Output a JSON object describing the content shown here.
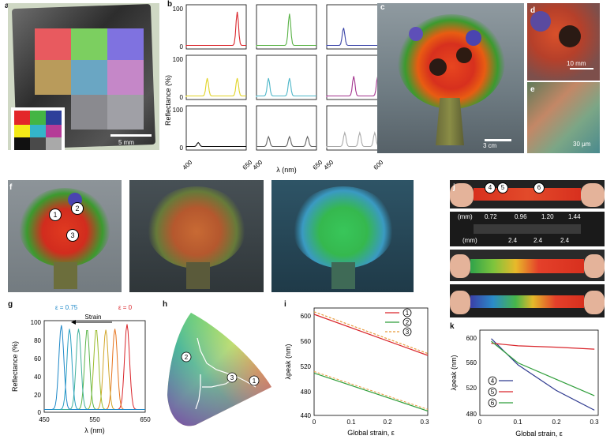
{
  "panel_labels": {
    "a": "a",
    "b": "b",
    "c": "c",
    "d": "d",
    "e": "e",
    "f": "f",
    "g": "g",
    "h": "h",
    "i": "i",
    "j": "j",
    "k": "k"
  },
  "a": {
    "scale": "5 mm"
  },
  "b": {
    "ylabel": "Reflectance (%)",
    "xlabel": "λ (nm)",
    "yticks_top": [
      "100",
      "0"
    ],
    "yticks_mid": [
      "100",
      "0"
    ],
    "yticks_bot": [
      "100",
      "0"
    ],
    "xticks": [
      "400",
      "650",
      "400",
      "650",
      "450",
      "600"
    ],
    "colors": [
      "#d9252b",
      "#59b246",
      "#3b45a8",
      "#e1d325",
      "#4fb7c9",
      "#a3338e",
      "#111111",
      "#666666",
      "#aaaaaa"
    ]
  },
  "c": {
    "scale": "3 cm"
  },
  "d": {
    "scale": "10 mm"
  },
  "e": {
    "scale": "30 μm"
  },
  "f": {
    "markers": [
      "1",
      "2",
      "3"
    ]
  },
  "g": {
    "strain_label": "Strain",
    "eps_left": "ε = 0.75",
    "eps_right": "ε = 0",
    "ylabel": "Reflectance (%)",
    "xlabel": "λ (nm)",
    "yticks": [
      "100",
      "80",
      "60",
      "40",
      "20",
      "0"
    ],
    "xticks": [
      "450",
      "550",
      "650"
    ]
  },
  "h": {
    "markers": [
      "1",
      "2",
      "3"
    ]
  },
  "i": {
    "ylabel": "λpeak (nm)",
    "xlabel": "Global strain, ε",
    "yticks": [
      "600",
      "560",
      "520",
      "480",
      "440"
    ],
    "xticks": [
      "0",
      "0.1",
      "0.2",
      "0.3"
    ],
    "legend": [
      "1",
      "2",
      "3"
    ]
  },
  "j": {
    "markers": [
      "4",
      "5",
      "6"
    ],
    "mm_label_top": "(mm)",
    "mm_label_bottom": "(mm)",
    "top_values": [
      "0.72",
      "0.96",
      "1.20",
      "1.44"
    ],
    "bottom_values": [
      "2.4",
      "2.4",
      "2.4"
    ]
  },
  "k": {
    "ylabel": "λpeak (nm)",
    "xlabel": "Global strain, ε",
    "yticks": [
      "600",
      "560",
      "520",
      "480"
    ],
    "xticks": [
      "0",
      "0.1",
      "0.2",
      "0.3"
    ],
    "legend": [
      "4",
      "5",
      "6"
    ]
  },
  "chart_data": [
    {
      "type": "line",
      "title": "",
      "xlabel": "λ (nm)",
      "ylabel": "Reflectance (%)",
      "ylim": [
        0,
        100
      ],
      "xlim": [
        450,
        650
      ],
      "series": [
        {
          "peak": 614,
          "max": 93
        },
        {
          "peak": 590,
          "max": 88
        },
        {
          "peak": 572,
          "max": 87
        },
        {
          "peak": 553,
          "max": 88
        },
        {
          "peak": 535,
          "max": 88
        },
        {
          "peak": 518,
          "max": 88
        },
        {
          "peak": 500,
          "max": 88
        },
        {
          "peak": 484,
          "max": 92
        }
      ]
    },
    {
      "type": "line",
      "title": "",
      "xlabel": "Global strain, ε",
      "ylabel": "λpeak (nm)",
      "xlim": [
        0,
        0.31
      ],
      "ylim": [
        440,
        610
      ],
      "series": [
        {
          "name": "1",
          "x": [
            0,
            0.31
          ],
          "y": [
            600,
            535
          ]
        },
        {
          "name": "2",
          "x": [
            0,
            0.31
          ],
          "y": [
            507,
            447
          ]
        },
        {
          "name": "3",
          "x": [
            0,
            0.31
          ],
          "y": [
            604,
            538
          ]
        }
      ]
    },
    {
      "type": "line",
      "title": "",
      "xlabel": "Global strain, ε",
      "ylabel": "λpeak (nm)",
      "xlim": [
        0,
        0.31
      ],
      "ylim": [
        480,
        610
      ],
      "series": [
        {
          "name": "4",
          "x": [
            0.03,
            0.1,
            0.2,
            0.3
          ],
          "y": [
            597,
            557,
            518,
            488
          ]
        },
        {
          "name": "5",
          "x": [
            0.03,
            0.1,
            0.2,
            0.3
          ],
          "y": [
            590,
            586,
            584,
            581
          ]
        },
        {
          "name": "6",
          "x": [
            0.03,
            0.1,
            0.2,
            0.3
          ],
          "y": [
            593,
            560,
            535,
            510
          ]
        }
      ]
    }
  ]
}
